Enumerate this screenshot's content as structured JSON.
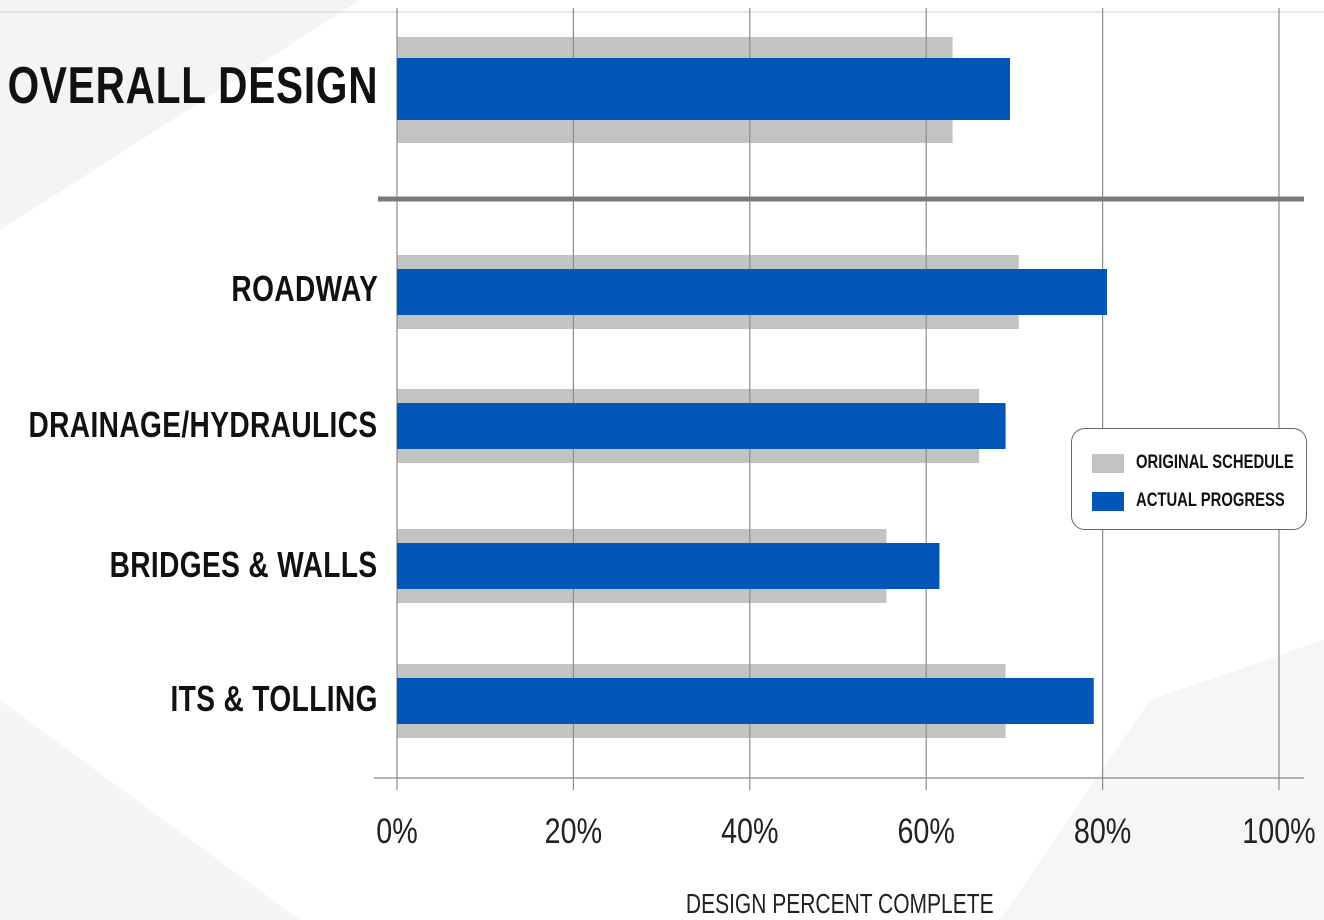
{
  "chart_data": {
    "type": "bar",
    "orientation": "horizontal",
    "categories": [
      "OVERALL DESIGN",
      "ROADWAY",
      "DRAINAGE/HYDRAULICS",
      "BRIDGES & WALLS",
      "ITS & TOLLING"
    ],
    "series": [
      {
        "name": "ORIGINAL SCHEDULE",
        "values": [
          63,
          70.5,
          66,
          55.5,
          69
        ]
      },
      {
        "name": "ACTUAL PROGRESS",
        "values": [
          69.5,
          80.5,
          69,
          61.5,
          79
        ]
      }
    ],
    "xlabel": "DESIGN PERCENT COMPLETE",
    "ylabel": "",
    "xlim": [
      0,
      100
    ],
    "ticks": [
      "0%",
      "20%",
      "40%",
      "60%",
      "80%",
      "100%"
    ],
    "tick_values": [
      0,
      20,
      40,
      60,
      80,
      100
    ],
    "grid": true,
    "legend_position": "right"
  },
  "colors": {
    "original_schedule": "#c3c3c3",
    "actual_progress": "#0057b8",
    "grid": "#8c8c8c",
    "separator": "#7a7a7a"
  }
}
